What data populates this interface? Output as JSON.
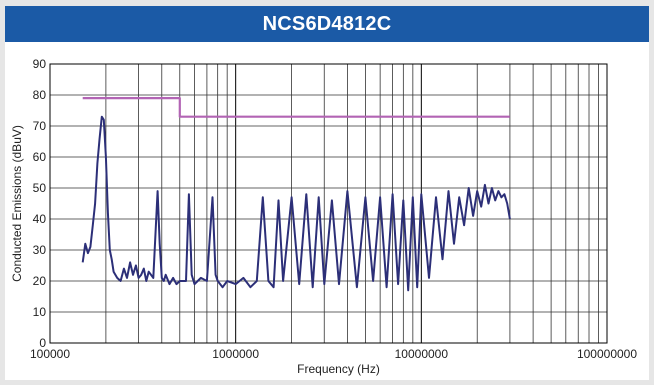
{
  "title": "NCS6D4812C",
  "chart_data": {
    "type": "line",
    "title": "NCS6D4812C",
    "xlabel": "Frequency (Hz)",
    "ylabel": "Conducted Emissions (dBuV)",
    "x_scale": "log",
    "xlim": [
      100000,
      100000000
    ],
    "ylim": [
      0,
      90
    ],
    "x_ticks": [
      100000,
      1000000,
      10000000,
      100000000
    ],
    "x_tick_labels": [
      "100000",
      "1000000",
      "10000000",
      "100000000"
    ],
    "y_ticks": [
      0,
      10,
      20,
      30,
      40,
      50,
      60,
      70,
      80,
      90
    ],
    "y_tick_labels": [
      "0",
      "10",
      "20",
      "30",
      "40",
      "50",
      "60",
      "70",
      "80",
      "90"
    ],
    "grid": true,
    "series": [
      {
        "color": "#b264b4",
        "x": [
          150000,
          500000,
          500000,
          30000000
        ],
        "values": [
          79,
          79,
          73,
          73
        ]
      },
      {
        "color": "#2c2f78",
        "x": [
          150000,
          155000,
          160000,
          165000,
          170000,
          175000,
          180000,
          185000,
          190000,
          195000,
          200000,
          205000,
          210000,
          215000,
          220000,
          230000,
          240000,
          250000,
          260000,
          270000,
          280000,
          290000,
          300000,
          310000,
          320000,
          330000,
          340000,
          360000,
          380000,
          390000,
          400000,
          410000,
          420000,
          440000,
          460000,
          480000,
          500000,
          540000,
          560000,
          580000,
          600000,
          650000,
          700000,
          750000,
          780000,
          800000,
          850000,
          900000,
          1000000,
          1100000,
          1200000,
          1300000,
          1400000,
          1500000,
          1600000,
          1700000,
          1800000,
          2000000,
          2200000,
          2400000,
          2600000,
          2800000,
          3000000,
          3300000,
          3600000,
          4000000,
          4500000,
          5000000,
          5500000,
          6000000,
          6500000,
          7000000,
          7500000,
          8000000,
          8500000,
          9000000,
          9500000,
          10000000,
          11000000,
          12000000,
          13000000,
          14000000,
          15000000,
          16000000,
          17000000,
          18000000,
          19000000,
          20000000,
          21000000,
          22000000,
          23000000,
          24000000,
          25000000,
          26000000,
          27000000,
          28000000,
          29000000,
          30000000
        ],
        "values": [
          26,
          32,
          29,
          31,
          38,
          45,
          58,
          66,
          73,
          72,
          60,
          42,
          30,
          27,
          23,
          21,
          20,
          24,
          21,
          26,
          22,
          25,
          21,
          22,
          24,
          20,
          23,
          21,
          49,
          32,
          21,
          20,
          22,
          19,
          21,
          19,
          20,
          20,
          48,
          22,
          19,
          21,
          20,
          47,
          22,
          20,
          18,
          20,
          19,
          21,
          18,
          20,
          47,
          20,
          18,
          46,
          20,
          47,
          19,
          48,
          18,
          47,
          19,
          46,
          19,
          49,
          18,
          47,
          20,
          47,
          18,
          48,
          19,
          46,
          17,
          47,
          18,
          48,
          21,
          47,
          27,
          49,
          32,
          47,
          38,
          50,
          41,
          49,
          44,
          51,
          45,
          50,
          46,
          49,
          47,
          48,
          45,
          40
        ]
      }
    ]
  }
}
